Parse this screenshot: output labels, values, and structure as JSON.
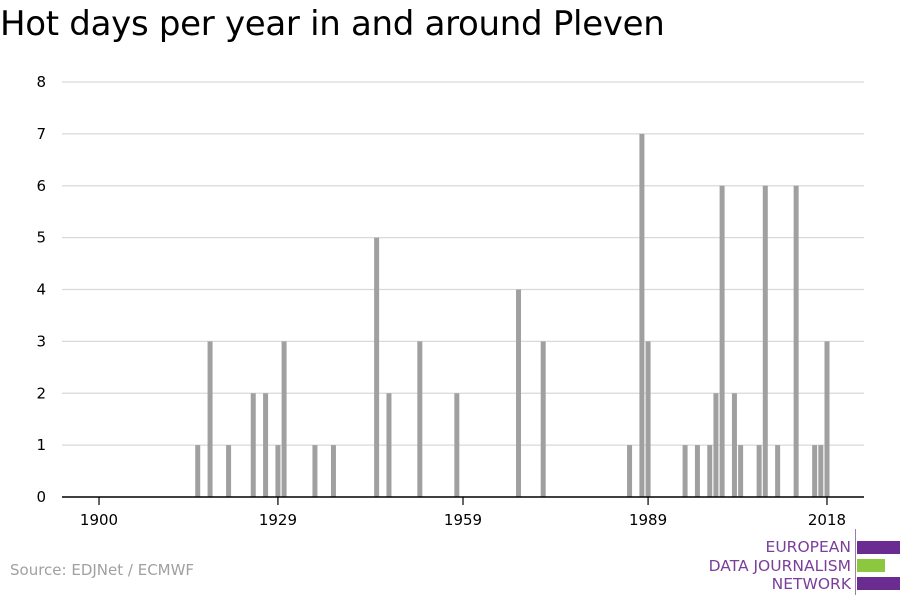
{
  "title": "Hot days per year in and around Pleven",
  "source": "Source: EDJNet / ECMWF",
  "logo": {
    "lines": [
      "EUROPEAN",
      "DATA JOURNALISM",
      "NETWORK"
    ],
    "text_color": "#7a3f9a",
    "bar_colors": [
      "#6a2c91",
      "#8dc63f",
      "#6a2c91"
    ]
  },
  "colors": {
    "bar": "#a0a0a0",
    "grid": "#d9d9d9",
    "axis": "#000000"
  },
  "chart_data": {
    "type": "bar",
    "title": "Hot days per year in and around Pleven",
    "xlabel": "",
    "ylabel": "",
    "xlim": [
      1894,
      2024
    ],
    "ylim": [
      0,
      8
    ],
    "grid": true,
    "x_ticks": [
      1900,
      1929,
      1959,
      1989,
      2018
    ],
    "y_ticks": [
      0,
      1,
      2,
      3,
      4,
      5,
      6,
      7,
      8
    ],
    "years": [
      1916,
      1918,
      1921,
      1925,
      1927,
      1929,
      1930,
      1935,
      1938,
      1945,
      1947,
      1952,
      1958,
      1968,
      1972,
      1986,
      1988,
      1989,
      1995,
      1997,
      1999,
      2000,
      2001,
      2003,
      2004,
      2007,
      2008,
      2010,
      2013,
      2016,
      2017,
      2018
    ],
    "values": [
      1,
      3,
      1,
      2,
      2,
      1,
      3,
      1,
      1,
      5,
      2,
      3,
      2,
      4,
      3,
      1,
      7,
      3,
      1,
      1,
      1,
      2,
      6,
      2,
      1,
      1,
      6,
      1,
      6,
      1,
      1,
      3
    ]
  }
}
